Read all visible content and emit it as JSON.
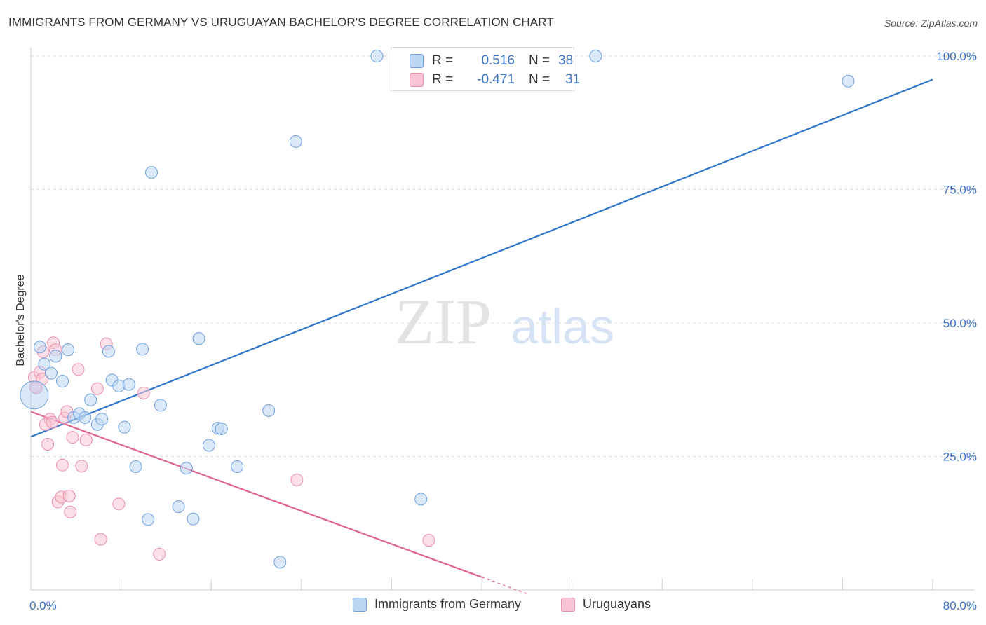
{
  "header": {
    "title": "IMMIGRANTS FROM GERMANY VS URUGUAYAN BACHELOR'S DEGREE CORRELATION CHART",
    "source": "Source: ZipAtlas.com"
  },
  "watermark": {
    "zip": "ZIP",
    "atlas": "atlas"
  },
  "colors": {
    "blue_fill": "#bcd5f3",
    "blue_stroke": "#6f9fe0",
    "blue_line": "#2f74cc",
    "pink_fill": "#f9c4d4",
    "pink_stroke": "#e98fab",
    "pink_line": "#e0638f",
    "accent_text": "#3b73c6",
    "grid": "#dddddd"
  },
  "legend": {
    "rows": [
      {
        "r_label": "R =",
        "r_value": "0.516",
        "n_label": "N =",
        "n_value": "38"
      },
      {
        "r_label": "R =",
        "r_value": "-0.471",
        "n_label": "N =",
        "n_value": "31"
      }
    ]
  },
  "bottom_legend": {
    "items": [
      {
        "label": "Immigrants from Germany"
      },
      {
        "label": "Uruguayans"
      }
    ]
  },
  "chart_data": {
    "type": "scatter",
    "title": "IMMIGRANTS FROM GERMANY VS URUGUAYAN BACHELOR'S DEGREE CORRELATION CHART",
    "xlabel": "",
    "ylabel": "Bachelor's Degree",
    "xlim": [
      0,
      80
    ],
    "ylim": [
      0,
      101
    ],
    "x_tick_labels": [
      {
        "value": 0,
        "label": "0.0%"
      },
      {
        "value": 80,
        "label": "80.0%"
      }
    ],
    "y_tick_labels": [
      {
        "value": 25,
        "label": "25.0%"
      },
      {
        "value": 50,
        "label": "50.0%"
      },
      {
        "value": 75,
        "label": "75.0%"
      },
      {
        "value": 100,
        "label": "100.0%"
      }
    ],
    "x_minor_ticks": [
      0,
      8,
      16,
      24,
      32,
      40,
      48,
      56,
      64,
      72,
      80
    ],
    "grid": true,
    "series": [
      {
        "name": "Immigrants from Germany",
        "color": "#6f9fe0",
        "r": "0.516",
        "n": "38",
        "trend": {
          "x0": 0,
          "y0": 28.7,
          "x1": 80,
          "y1": 95.6
        },
        "points": [
          {
            "x": 0.3,
            "y": 36.5,
            "large": true
          },
          {
            "x": 0.8,
            "y": 45.5
          },
          {
            "x": 1.2,
            "y": 42.3
          },
          {
            "x": 1.8,
            "y": 40.6
          },
          {
            "x": 2.2,
            "y": 43.8
          },
          {
            "x": 2.8,
            "y": 39.1
          },
          {
            "x": 3.3,
            "y": 45.0
          },
          {
            "x": 3.8,
            "y": 32.3
          },
          {
            "x": 4.3,
            "y": 33.0
          },
          {
            "x": 4.8,
            "y": 32.3
          },
          {
            "x": 5.3,
            "y": 35.6
          },
          {
            "x": 5.9,
            "y": 31.0
          },
          {
            "x": 6.3,
            "y": 32.0
          },
          {
            "x": 6.9,
            "y": 44.7
          },
          {
            "x": 7.2,
            "y": 39.3
          },
          {
            "x": 7.8,
            "y": 38.2
          },
          {
            "x": 8.3,
            "y": 30.5
          },
          {
            "x": 8.7,
            "y": 38.5
          },
          {
            "x": 9.3,
            "y": 23.1
          },
          {
            "x": 9.9,
            "y": 45.1
          },
          {
            "x": 10.4,
            "y": 13.2
          },
          {
            "x": 10.7,
            "y": 78.2
          },
          {
            "x": 11.5,
            "y": 34.6
          },
          {
            "x": 13.1,
            "y": 15.6
          },
          {
            "x": 13.8,
            "y": 22.8
          },
          {
            "x": 14.4,
            "y": 13.3
          },
          {
            "x": 14.9,
            "y": 47.1
          },
          {
            "x": 15.8,
            "y": 27.1
          },
          {
            "x": 16.6,
            "y": 30.3
          },
          {
            "x": 16.9,
            "y": 30.2
          },
          {
            "x": 18.3,
            "y": 23.1
          },
          {
            "x": 21.1,
            "y": 33.6
          },
          {
            "x": 22.1,
            "y": 5.2
          },
          {
            "x": 23.5,
            "y": 84.0
          },
          {
            "x": 34.6,
            "y": 17.0
          },
          {
            "x": 30.7,
            "y": 100.0
          },
          {
            "x": 50.1,
            "y": 100.0
          },
          {
            "x": 72.5,
            "y": 95.3
          }
        ]
      },
      {
        "name": "Uruguayans",
        "color": "#e98fab",
        "r": "-0.471",
        "n": "31",
        "trend": {
          "x0": 0,
          "y0": 33.4,
          "x1": 40,
          "y1": 2.4
        },
        "trend_dashed_extension": {
          "x0": 40,
          "y0": 2.4,
          "x1": 44,
          "y1": -0.7
        },
        "points": [
          {
            "x": 0.3,
            "y": 39.8
          },
          {
            "x": 0.5,
            "y": 37.8
          },
          {
            "x": 0.8,
            "y": 40.8
          },
          {
            "x": 1.0,
            "y": 39.5
          },
          {
            "x": 1.1,
            "y": 44.6
          },
          {
            "x": 1.5,
            "y": 27.3
          },
          {
            "x": 1.7,
            "y": 32.0
          },
          {
            "x": 1.3,
            "y": 31.0
          },
          {
            "x": 1.9,
            "y": 31.4
          },
          {
            "x": 2.0,
            "y": 46.3
          },
          {
            "x": 2.2,
            "y": 45.0
          },
          {
            "x": 2.4,
            "y": 16.5
          },
          {
            "x": 2.7,
            "y": 17.4
          },
          {
            "x": 2.8,
            "y": 23.4
          },
          {
            "x": 3.0,
            "y": 32.2
          },
          {
            "x": 3.2,
            "y": 33.4
          },
          {
            "x": 3.4,
            "y": 17.6
          },
          {
            "x": 3.5,
            "y": 14.6
          },
          {
            "x": 3.7,
            "y": 28.6
          },
          {
            "x": 4.2,
            "y": 41.3
          },
          {
            "x": 4.5,
            "y": 23.2
          },
          {
            "x": 4.9,
            "y": 28.1
          },
          {
            "x": 5.9,
            "y": 37.7
          },
          {
            "x": 6.2,
            "y": 9.5
          },
          {
            "x": 6.7,
            "y": 46.1
          },
          {
            "x": 7.8,
            "y": 16.1
          },
          {
            "x": 10.0,
            "y": 36.9
          },
          {
            "x": 11.4,
            "y": 6.7
          },
          {
            "x": 23.6,
            "y": 20.6
          },
          {
            "x": 35.3,
            "y": 9.3
          },
          {
            "x": 0.4,
            "y": 38.0
          }
        ]
      }
    ]
  }
}
